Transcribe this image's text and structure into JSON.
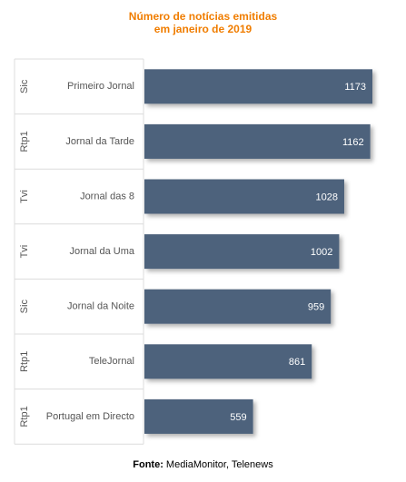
{
  "chart_data": {
    "type": "bar",
    "orientation": "horizontal",
    "title_lines": [
      "Número de notícias emitidas",
      "em janeiro de 2019"
    ],
    "groups": [
      "Sic",
      "Rtp1",
      "Tvi",
      "Tvi",
      "Sic",
      "Rtp1",
      "Rtp1"
    ],
    "categories": [
      "Primeiro Jornal",
      "Jornal da Tarde",
      "Jornal das 8",
      "Jornal da Uma",
      "Jornal da Noite",
      "TeleJornal",
      "Portugal em Directo"
    ],
    "values": [
      1173,
      1162,
      1028,
      1002,
      959,
      861,
      559
    ],
    "xlim": [
      0,
      1173
    ],
    "grid": false,
    "legend": "none",
    "bar_color": "#4e627b",
    "title_color": "#f07d00"
  },
  "source": {
    "label": "Fonte:",
    "text": "MediaMonitor, Telenews"
  }
}
